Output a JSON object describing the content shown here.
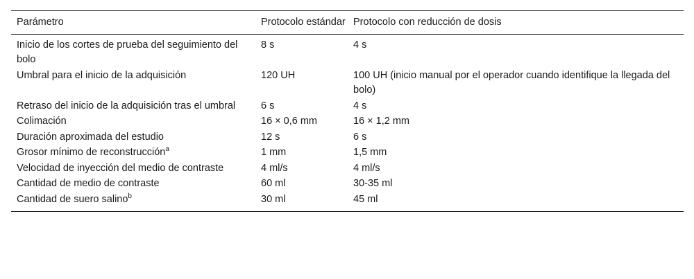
{
  "table": {
    "headers": [
      "Parámetro",
      "Protocolo estándar",
      "Protocolo con reducción de dosis"
    ],
    "rows": [
      {
        "param": "Inicio de los cortes de prueba del seguimiento del bolo",
        "sup": "",
        "standard": "8 s",
        "reduced": "4 s"
      },
      {
        "param": "Umbral para el inicio de la adquisición",
        "sup": "",
        "standard": "120 UH",
        "reduced": "100 UH (inicio manual por el operador cuando identifique la llegada del bolo)"
      },
      {
        "param": "Retraso del inicio de la adquisición tras el umbral",
        "sup": "",
        "standard": "6 s",
        "reduced": "4 s"
      },
      {
        "param": "Colimación",
        "sup": "",
        "standard": "16 × 0,6 mm",
        "reduced": "16 × 1,2 mm"
      },
      {
        "param": "Duración aproximada del estudio",
        "sup": "",
        "standard": "12 s",
        "reduced": "6 s"
      },
      {
        "param": "Grosor mínimo de reconstrucción",
        "sup": "a",
        "standard": "1 mm",
        "reduced": "1,5 mm"
      },
      {
        "param": "Velocidad de inyección del medio de contraste",
        "sup": "",
        "standard": "4 ml/s",
        "reduced": "4 ml/s"
      },
      {
        "param": "Cantidad de medio de contraste",
        "sup": "",
        "standard": "60 ml",
        "reduced": "30-35 ml"
      },
      {
        "param": "Cantidad de suero salino",
        "sup": "b",
        "standard": "30 ml",
        "reduced": "45 ml"
      }
    ]
  }
}
